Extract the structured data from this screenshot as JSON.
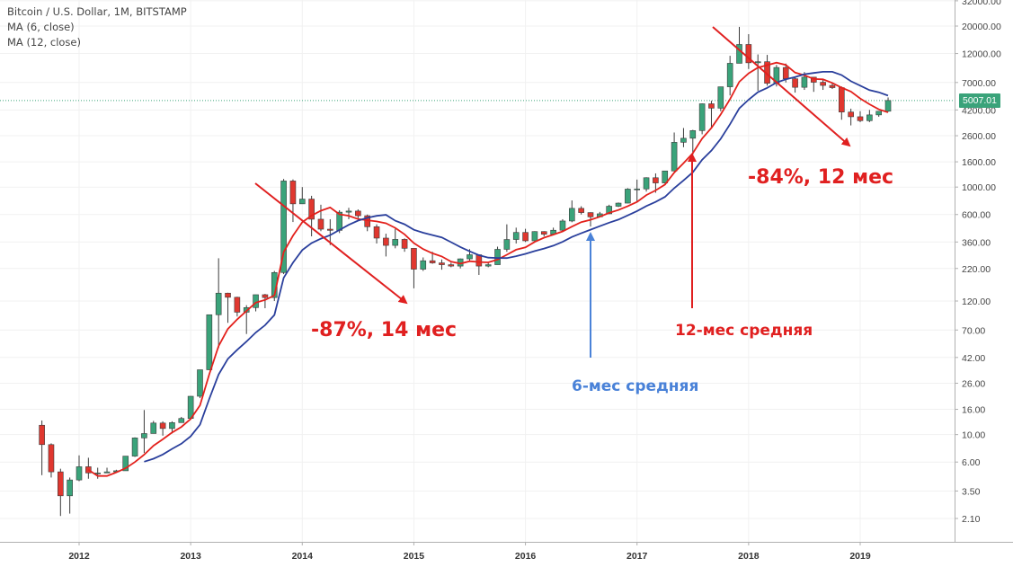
{
  "legend": {
    "title": "Bitcoin / U.S. Dollar, 1M, BITSTAMP",
    "ma1": "MA (6, close)",
    "ma2": "MA (12, close)"
  },
  "annotations": {
    "drop1": "-87%, 14 мес",
    "drop2": "-84%, 12 мес",
    "ma12": "12-мес средняя",
    "ma6": "6-мес средняя"
  },
  "last_price_label": "5007.01",
  "colors": {
    "up": "#3aa37a",
    "down": "#e0372f",
    "ma6": "#e3211c",
    "ma12": "#2a3f9c",
    "annotation_red": "#e02020",
    "annotation_blue": "#4a82d8",
    "last_price_line": "#3aa37a"
  },
  "chart_data": {
    "type": "candlestick",
    "scale": "log",
    "ylim": [
      1.7,
      32000
    ],
    "y_ticks": [
      "32000.00",
      "20000.00",
      "12000.00",
      "7000.00",
      "4200.00",
      "2600.00",
      "1600.00",
      "1000.00",
      "600.00",
      "360.00",
      "220.00",
      "120.00",
      "70.00",
      "42.00",
      "26.00",
      "16.00",
      "10.00",
      "6.00",
      "3.50",
      "2.10"
    ],
    "x_ticks": [
      "2012",
      "2013",
      "2014",
      "2015",
      "2016",
      "2017",
      "2018",
      "2019"
    ],
    "series": [
      {
        "name": "MA (6, close)",
        "values_source": "close",
        "period": 6
      },
      {
        "name": "MA (12, close)",
        "values_source": "close",
        "period": 12
      }
    ],
    "last_price": 5007.01,
    "candles": [
      [
        "2011-09",
        11.9,
        13.0,
        4.7,
        8.3
      ],
      [
        "2011-10",
        8.3,
        8.5,
        4.5,
        5.0
      ],
      [
        "2011-11",
        5.0,
        5.3,
        2.2,
        3.2
      ],
      [
        "2011-12",
        3.2,
        4.5,
        2.3,
        4.3
      ],
      [
        "2012-01",
        4.3,
        6.8,
        4.2,
        5.5
      ],
      [
        "2012-02",
        5.5,
        6.5,
        4.4,
        4.9
      ],
      [
        "2012-03",
        4.9,
        5.4,
        4.4,
        4.9
      ],
      [
        "2012-04",
        4.9,
        5.4,
        4.9,
        5.0
      ],
      [
        "2012-05",
        5.0,
        5.2,
        4.9,
        5.1
      ],
      [
        "2012-06",
        5.1,
        6.7,
        5.1,
        6.7
      ],
      [
        "2012-07",
        6.7,
        9.5,
        6.6,
        9.4
      ],
      [
        "2012-08",
        9.4,
        15.8,
        7.1,
        10.2
      ],
      [
        "2012-09",
        10.2,
        12.9,
        10.2,
        12.4
      ],
      [
        "2012-10",
        12.4,
        12.8,
        9.8,
        11.2
      ],
      [
        "2012-11",
        11.2,
        12.8,
        10.2,
        12.5
      ],
      [
        "2012-12",
        12.5,
        13.9,
        12.5,
        13.5
      ],
      [
        "2013-01",
        13.5,
        20.5,
        13.4,
        20.4
      ],
      [
        "2013-02",
        20.4,
        33.4,
        19.7,
        33.4
      ],
      [
        "2013-03",
        33.4,
        93.0,
        33.2,
        93.0
      ],
      [
        "2013-04",
        93.0,
        266.0,
        50.0,
        139.0
      ],
      [
        "2013-05",
        139.0,
        140.0,
        80.0,
        128.7
      ],
      [
        "2013-06",
        128.7,
        130.0,
        90.0,
        97.5
      ],
      [
        "2013-07",
        97.5,
        111.0,
        65.0,
        106.2
      ],
      [
        "2013-08",
        106.2,
        135.0,
        99.0,
        135.0
      ],
      [
        "2013-09",
        135.0,
        137.0,
        105.0,
        128.0
      ],
      [
        "2013-10",
        128.0,
        210.0,
        120.0,
        204.0
      ],
      [
        "2013-11",
        204.0,
        1163.0,
        198.0,
        1120.0
      ],
      [
        "2013-12",
        1120.0,
        1153.0,
        522.0,
        732.0
      ],
      [
        "2014-01",
        732.0,
        1000.0,
        730.0,
        800.0
      ],
      [
        "2014-02",
        800.0,
        850.0,
        400.0,
        550.0
      ],
      [
        "2014-03",
        550.0,
        720.0,
        440.0,
        457.0
      ],
      [
        "2014-04",
        457.0,
        550.0,
        340.0,
        447.0
      ],
      [
        "2014-05",
        447.0,
        650.0,
        425.0,
        627.0
      ],
      [
        "2014-06",
        627.0,
        680.0,
        550.0,
        640.0
      ],
      [
        "2014-07",
        640.0,
        660.0,
        560.0,
        587.0
      ],
      [
        "2014-08",
        587.0,
        600.0,
        440.0,
        478.0
      ],
      [
        "2014-09",
        478.0,
        500.0,
        350.0,
        387.0
      ],
      [
        "2014-10",
        387.0,
        420.0,
        275.0,
        338.0
      ],
      [
        "2014-11",
        338.0,
        460.0,
        320.0,
        378.0
      ],
      [
        "2014-12",
        378.0,
        385.0,
        300.0,
        320.0
      ],
      [
        "2015-01",
        320.0,
        320.0,
        152.0,
        217.0
      ],
      [
        "2015-02",
        217.0,
        270.0,
        210.0,
        254.0
      ],
      [
        "2015-03",
        254.0,
        300.0,
        240.0,
        244.0
      ],
      [
        "2015-04",
        244.0,
        260.0,
        215.0,
        236.0
      ],
      [
        "2015-05",
        236.0,
        245.0,
        225.0,
        230.0
      ],
      [
        "2015-06",
        230.0,
        265.0,
        220.0,
        263.0
      ],
      [
        "2015-07",
        263.0,
        315.0,
        255.0,
        284.0
      ],
      [
        "2015-08",
        284.0,
        285.0,
        195.0,
        230.0
      ],
      [
        "2015-09",
        230.0,
        245.0,
        225.0,
        236.0
      ],
      [
        "2015-10",
        236.0,
        330.0,
        236.0,
        314.0
      ],
      [
        "2015-11",
        314.0,
        500.0,
        300.0,
        377.0
      ],
      [
        "2015-12",
        377.0,
        470.0,
        350.0,
        430.0
      ],
      [
        "2016-01",
        430.0,
        460.0,
        360.0,
        368.0
      ],
      [
        "2016-02",
        368.0,
        440.0,
        365.0,
        437.0
      ],
      [
        "2016-03",
        437.0,
        440.0,
        400.0,
        416.0
      ],
      [
        "2016-04",
        416.0,
        470.0,
        415.0,
        448.0
      ],
      [
        "2016-05",
        448.0,
        550.0,
        440.0,
        532.0
      ],
      [
        "2016-06",
        532.0,
        780.0,
        520.0,
        673.0
      ],
      [
        "2016-07",
        673.0,
        700.0,
        600.0,
        622.0
      ],
      [
        "2016-08",
        622.0,
        625.0,
        480.0,
        575.0
      ],
      [
        "2016-09",
        575.0,
        630.0,
        570.0,
        608.0
      ],
      [
        "2016-10",
        608.0,
        720.0,
        605.0,
        700.0
      ],
      [
        "2016-11",
        700.0,
        750.0,
        690.0,
        742.0
      ],
      [
        "2016-12",
        742.0,
        980.0,
        740.0,
        963.0
      ],
      [
        "2017-01",
        963.0,
        1150.0,
        750.0,
        966.0
      ],
      [
        "2017-02",
        966.0,
        1200.0,
        920.0,
        1190.0
      ],
      [
        "2017-03",
        1190.0,
        1290.0,
        900.0,
        1080.0
      ],
      [
        "2017-04",
        1080.0,
        1350.0,
        1070.0,
        1350.0
      ],
      [
        "2017-05",
        1350.0,
        2760.0,
        1340.0,
        2300.0
      ],
      [
        "2017-06",
        2300.0,
        3000.0,
        2100.0,
        2480.0
      ],
      [
        "2017-07",
        2480.0,
        2900.0,
        1830.0,
        2860.0
      ],
      [
        "2017-08",
        2860.0,
        4740.0,
        2670.0,
        4710.0
      ],
      [
        "2017-09",
        4710.0,
        4980.0,
        2980.0,
        4340.0
      ],
      [
        "2017-10",
        4340.0,
        6470.0,
        4100.0,
        6460.0
      ],
      [
        "2017-11",
        6460.0,
        11500.0,
        5500.0,
        10000.0
      ],
      [
        "2017-12",
        10000.0,
        19700.0,
        10000.0,
        14200.0
      ],
      [
        "2018-01",
        14200.0,
        17200.0,
        9000.0,
        10100.0
      ],
      [
        "2018-02",
        10100.0,
        11800.0,
        6000.0,
        10300.0
      ],
      [
        "2018-03",
        10300.0,
        11700.0,
        6600.0,
        6900.0
      ],
      [
        "2018-04",
        6900.0,
        9700.0,
        6500.0,
        9250.0
      ],
      [
        "2018-05",
        9250.0,
        9960.0,
        7000.0,
        7500.0
      ],
      [
        "2018-06",
        7500.0,
        7750.0,
        5800.0,
        6400.0
      ],
      [
        "2018-07",
        6400.0,
        8500.0,
        6100.0,
        7730.0
      ],
      [
        "2018-08",
        7730.0,
        7760.0,
        5880.0,
        7030.0
      ],
      [
        "2018-09",
        7030.0,
        7400.0,
        6100.0,
        6630.0
      ],
      [
        "2018-10",
        6630.0,
        7000.0,
        6200.0,
        6360.0
      ],
      [
        "2018-11",
        6360.0,
        6500.0,
        3500.0,
        4040.0
      ],
      [
        "2018-12",
        4040.0,
        4300.0,
        3150.0,
        3700.0
      ],
      [
        "2019-01",
        3700.0,
        4100.0,
        3350.0,
        3440.0
      ],
      [
        "2019-02",
        3440.0,
        4200.0,
        3350.0,
        3830.0
      ],
      [
        "2019-03",
        3830.0,
        4100.0,
        3700.0,
        4100.0
      ],
      [
        "2019-04",
        4100.0,
        5300.0,
        4050.0,
        5007.0
      ]
    ]
  }
}
